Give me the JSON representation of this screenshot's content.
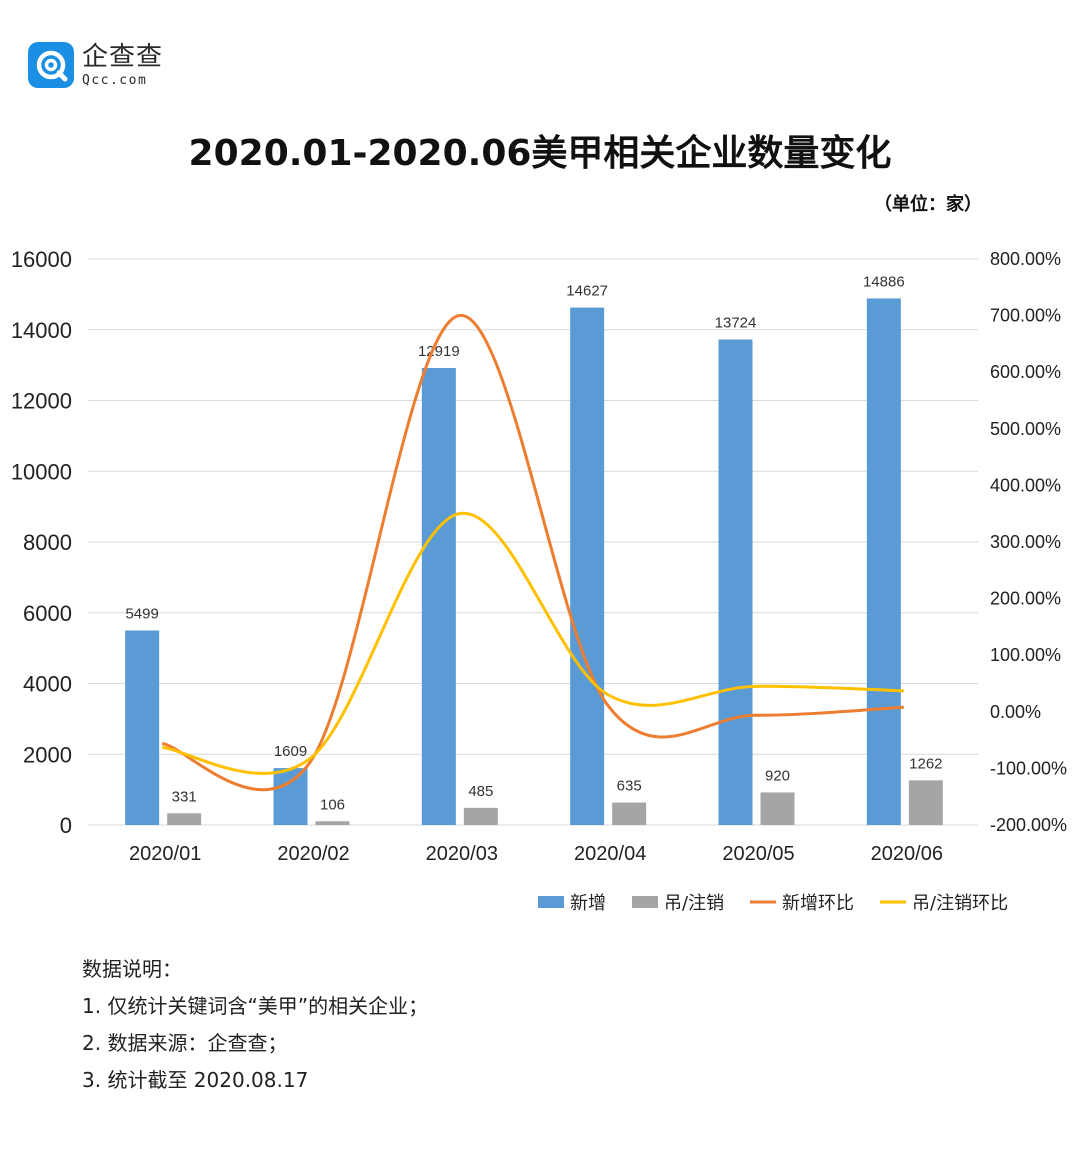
{
  "brand": {
    "name": "企查查",
    "domain": "Qcc.com"
  },
  "unit_label": "（单位：家）",
  "chart_data": {
    "type": "bar",
    "title": "2020.01-2020.06美甲相关企业数量变化",
    "categories": [
      "2020/01",
      "2020/02",
      "2020/03",
      "2020/04",
      "2020/05",
      "2020/06"
    ],
    "ylim": [
      0,
      16000
    ],
    "y_ticks": [
      "0",
      "2000",
      "4000",
      "6000",
      "8000",
      "10000",
      "12000",
      "14000",
      "16000"
    ],
    "y2lim": [
      -2.0,
      8.0
    ],
    "y2_ticks": [
      "-200.00%",
      "-100.00%",
      "0.00%",
      "100.00%",
      "200.00%",
      "300.00%",
      "400.00%",
      "500.00%",
      "600.00%",
      "700.00%",
      "800.00%"
    ],
    "grid": true,
    "legend_position": "bottom-right",
    "series": [
      {
        "name": "新增",
        "kind": "bar",
        "axis": "left",
        "color": "#5b9bd5",
        "values": [
          5499,
          1609,
          12919,
          14627,
          13724,
          14886
        ],
        "labels": [
          "5499",
          "1609",
          "12919",
          "14627",
          "13724",
          "14886"
        ]
      },
      {
        "name": "吊/注销",
        "kind": "bar",
        "axis": "left",
        "color": "#a5a5a5",
        "values": [
          331,
          106,
          485,
          635,
          920,
          1262
        ],
        "labels": [
          "331",
          "106",
          "485",
          "635",
          "920",
          "1262"
        ]
      },
      {
        "name": "新增环比",
        "kind": "line",
        "axis": "right",
        "color": "#ed7d31",
        "values": [
          -0.56,
          -0.88,
          7.0,
          0.13,
          -0.06,
          0.08
        ]
      },
      {
        "name": "吊/注销环比",
        "kind": "line",
        "axis": "right",
        "color": "#ffc000",
        "values": [
          -0.63,
          -0.82,
          3.5,
          0.31,
          0.45,
          0.37
        ]
      }
    ]
  },
  "notes": {
    "heading": "数据说明：",
    "items": [
      "1. 仅统计关键词含“美甲”的相关企业；",
      "2. 数据来源：企查查；",
      "3. 统计截至 2020.08.17"
    ]
  }
}
